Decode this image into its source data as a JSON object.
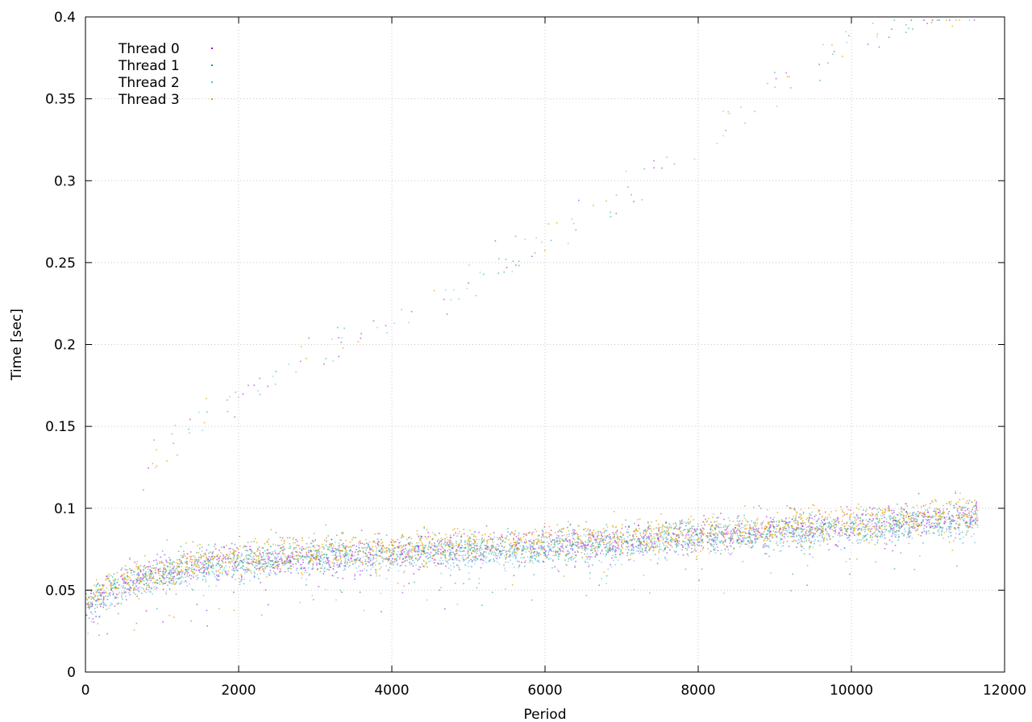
{
  "chart_data": {
    "type": "scatter",
    "title": "",
    "xlabel": "Period",
    "ylabel": "Time [sec]",
    "xlim": [
      0,
      12000
    ],
    "ylim": [
      0,
      0.4
    ],
    "x_ticks": [
      0,
      2000,
      4000,
      6000,
      8000,
      10000,
      12000
    ],
    "y_ticks": [
      0,
      0.05,
      0.1,
      0.15,
      0.2,
      0.25,
      0.3,
      0.35,
      0.4
    ],
    "grid": true,
    "legend_position": "top-left",
    "x_max_data": 11650,
    "series": [
      {
        "name": "Thread 0",
        "color": "#9400d3"
      },
      {
        "name": "Thread 1",
        "color": "#009e73"
      },
      {
        "name": "Thread 2",
        "color": "#56b4e9"
      },
      {
        "name": "Thread 3",
        "color": "#e69f00"
      }
    ],
    "trend": [
      [
        0,
        0.04
      ],
      [
        300,
        0.05
      ],
      [
        800,
        0.058
      ],
      [
        1500,
        0.065
      ],
      [
        2000,
        0.068
      ],
      [
        3000,
        0.071
      ],
      [
        4000,
        0.073
      ],
      [
        5000,
        0.075
      ],
      [
        6000,
        0.077
      ],
      [
        7000,
        0.08
      ],
      [
        8000,
        0.083
      ],
      [
        9000,
        0.086
      ],
      [
        10000,
        0.089
      ],
      [
        11000,
        0.092
      ],
      [
        11650,
        0.095
      ]
    ],
    "outlier_band": [
      [
        700,
        0.12
      ],
      [
        1500,
        0.155
      ],
      [
        2000,
        0.17
      ],
      [
        3000,
        0.195
      ],
      [
        4000,
        0.215
      ],
      [
        5000,
        0.235
      ],
      [
        6000,
        0.265
      ],
      [
        7000,
        0.29
      ],
      [
        8000,
        0.32
      ],
      [
        9000,
        0.355
      ],
      [
        10000,
        0.385
      ],
      [
        11000,
        0.4
      ]
    ]
  }
}
